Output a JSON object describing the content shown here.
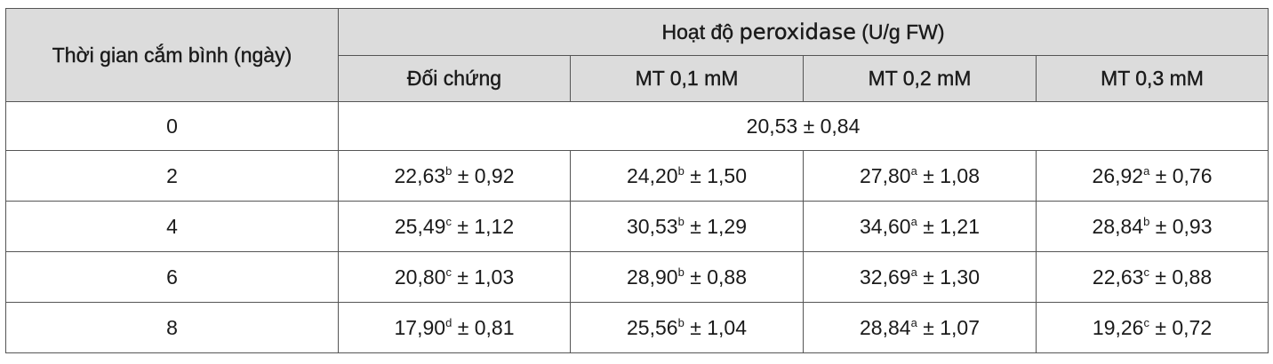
{
  "table": {
    "row_header": "Thời gian cắm bình (ngày)",
    "group_header": {
      "prefix": "Hoạt độ ",
      "enzyme": "peroxidase",
      "suffix": " (U/g FW)"
    },
    "columns": [
      "Đối chứng",
      "MT 0,1 mM",
      "MT 0,2 mM",
      "MT 0,3 mM"
    ],
    "row0": {
      "day": "0",
      "merged_value": "20,53 ± 0,84"
    },
    "rows": [
      {
        "day": "2",
        "cells": [
          {
            "value": "22,63",
            "letter": "b",
            "sd": " ± 0,92"
          },
          {
            "value": "24,20",
            "letter": "b",
            "sd": " ± 1,50"
          },
          {
            "value": "27,80",
            "letter": "a",
            "sd": " ± 1,08"
          },
          {
            "value": "26,92",
            "letter": "a",
            "sd": " ± 0,76"
          }
        ]
      },
      {
        "day": "4",
        "cells": [
          {
            "value": "25,49",
            "letter": "c",
            "sd": " ± 1,12"
          },
          {
            "value": "30,53",
            "letter": "b",
            "sd": " ± 1,29"
          },
          {
            "value": "34,60",
            "letter": "a",
            "sd": " ± 1,21"
          },
          {
            "value": "28,84",
            "letter": "b",
            "sd": " ± 0,93"
          }
        ]
      },
      {
        "day": "6",
        "cells": [
          {
            "value": "20,80",
            "letter": "c",
            "sd": " ± 1,03"
          },
          {
            "value": "28,90",
            "letter": "b",
            "sd": " ± 0,88"
          },
          {
            "value": "32,69",
            "letter": "a",
            "sd": " ± 1,30"
          },
          {
            "value": "22,63",
            "letter": "c",
            "sd": " ± 0,88"
          }
        ]
      },
      {
        "day": "8",
        "cells": [
          {
            "value": "17,90",
            "letter": "d",
            "sd": " ± 0,81"
          },
          {
            "value": "25,56",
            "letter": "b",
            "sd": " ± 1,04"
          },
          {
            "value": "28,84",
            "letter": "a",
            "sd": " ± 1,07"
          },
          {
            "value": "19,26",
            "letter": "c",
            "sd": " ± 0,72"
          }
        ]
      }
    ],
    "colors": {
      "header_bg": "#dcdcdc",
      "border": "#555555"
    }
  }
}
